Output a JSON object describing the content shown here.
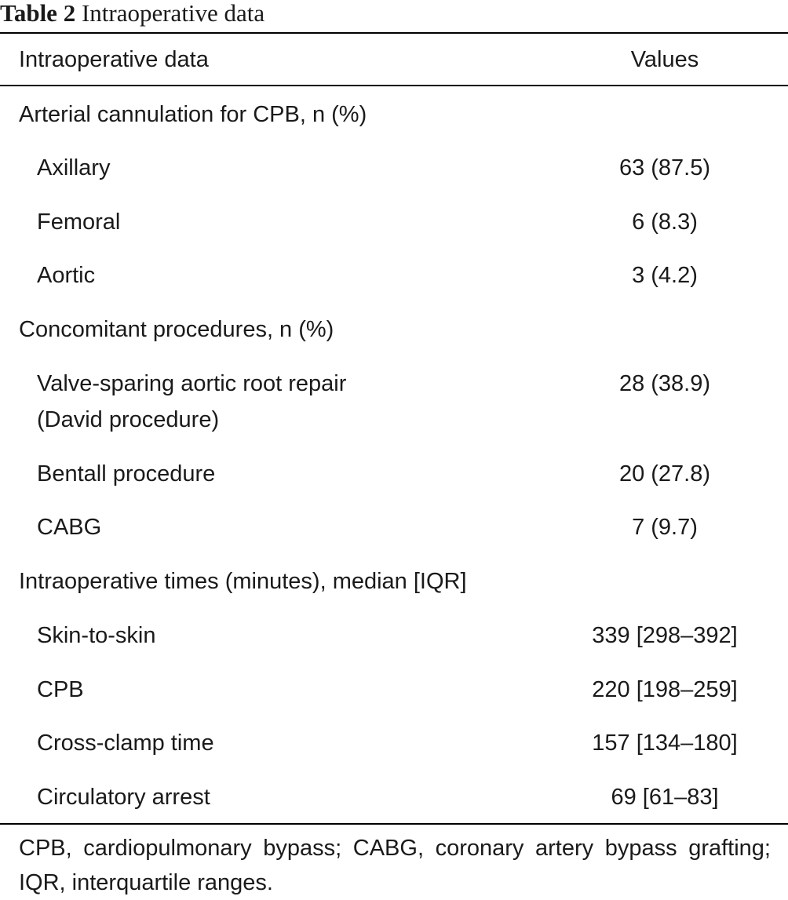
{
  "caption": {
    "label": "Table 2",
    "title": "Intraoperative data"
  },
  "header": {
    "col1": "Intraoperative data",
    "col2": "Values"
  },
  "rows": [
    {
      "label": "Arterial cannulation for CPB, n (%)",
      "value": ""
    },
    {
      "label": "Axillary",
      "value": "63 (87.5)"
    },
    {
      "label": "Femoral",
      "value": "6 (8.3)"
    },
    {
      "label": "Aortic",
      "value": "3 (4.2)"
    },
    {
      "label": "Concomitant procedures, n (%)",
      "value": ""
    },
    {
      "label": "Valve-sparing aortic root repair",
      "label2": "(David procedure)",
      "value": "28 (38.9)"
    },
    {
      "label": "Bentall procedure",
      "value": "20 (27.8)"
    },
    {
      "label": "CABG",
      "value": "7 (9.7)"
    },
    {
      "label": "Intraoperative times (minutes), median [IQR]",
      "value": ""
    },
    {
      "label": "Skin-to-skin",
      "value": "339 [298–392]"
    },
    {
      "label": "CPB",
      "value": "220 [198–259]"
    },
    {
      "label": "Cross-clamp time",
      "value": "157 [134–180]"
    },
    {
      "label": "Circulatory arrest",
      "value": "69 [61–83]"
    }
  ],
  "footnote": "CPB, cardiopulmonary bypass; CABG, coronary artery bypass grafting; IQR, interquartile ranges."
}
